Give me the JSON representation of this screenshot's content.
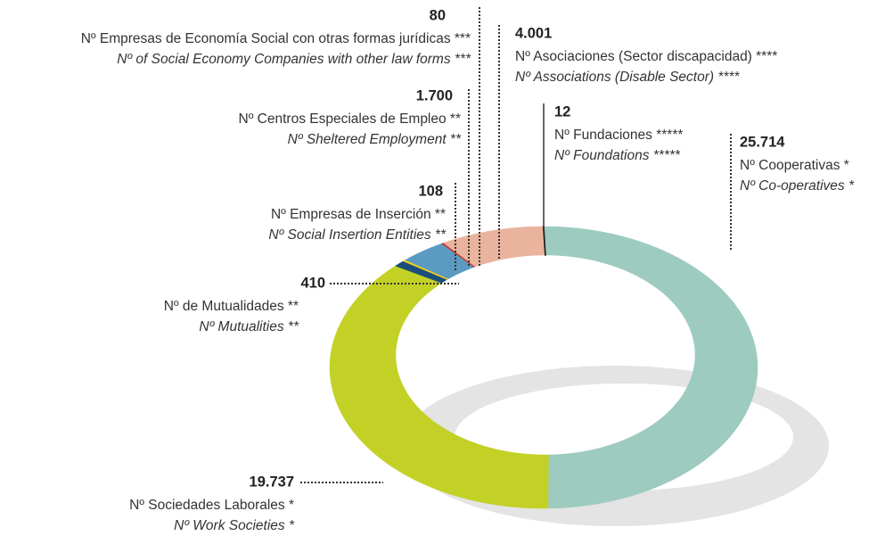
{
  "chart_data": {
    "type": "donut",
    "categories": [
      "Nº Cooperativas *",
      "Nº Sociedades Laborales *",
      "Nº de Mutualidades **",
      "Nº Empresas de Inserción **",
      "Nº Centros Especiales  de Empleo **",
      "Nº Empresas de Economía Social con otras formas jurídicas ***",
      "Nº Asociaciones (Sector discapacidad) ****",
      "Nº Fundaciones *****"
    ],
    "categories_en": [
      "Nº Co-operatives *",
      "Nº Work Societies *",
      "Nº Mutualities **",
      "Nº Social Insertion Entities **",
      "Nº Sheltered Employment **",
      "Nº of Social Economy Companies with other law forms ***",
      "Nº Associations (Disable Sector) ****",
      "Nº Foundations *****"
    ],
    "values": [
      25714,
      19737,
      410,
      108,
      1700,
      80,
      4001,
      12
    ],
    "value_labels": [
      "25.714",
      "19.737",
      "410",
      "108",
      "1.700",
      "80",
      "4.001",
      "12"
    ],
    "colors": [
      "#9dcbbf",
      "#c3d126",
      "#1b4e7a",
      "#f2cf1a",
      "#5b9ac1",
      "#c8372d",
      "#eab39d",
      "#222222"
    ]
  }
}
